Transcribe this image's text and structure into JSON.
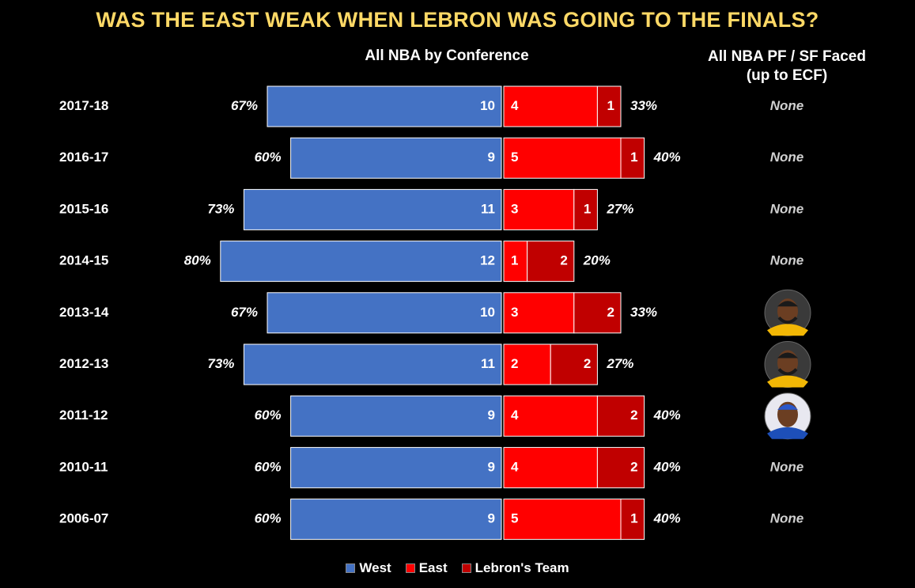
{
  "colors": {
    "west": "#4472C4",
    "east": "#FF0000",
    "lebron": "#C00000",
    "title": "#FFD966",
    "text": "#FFFFFF",
    "italic_label": "#D0D0D0",
    "background": "#000000"
  },
  "header": {
    "title": "WAS THE EAST WEAK WHEN LEBRON WAS GOING TO THE FINALS?",
    "conference_heading": "All NBA by Conference",
    "faced_heading_line1": "All NBA PF / SF Faced",
    "faced_heading_line2": "(up to ECF)"
  },
  "legend": {
    "west": "West",
    "east": "East",
    "lebron": "Lebron's Team"
  },
  "chart_data": {
    "type": "bar",
    "orientation": "horizontal-diverging",
    "title": "WAS THE EAST WEAK WHEN LEBRON WAS GOING TO THE FINALS?",
    "subtitle": "All NBA by Conference",
    "series_names": [
      "West",
      "East",
      "Lebron's Team"
    ],
    "rows": [
      {
        "season": "2017-18",
        "west": 10,
        "east": 4,
        "lebron": 1,
        "west_pct": "67%",
        "east_pct": "33%",
        "faced": "None",
        "faced_icon": ""
      },
      {
        "season": "2016-17",
        "west": 9,
        "east": 5,
        "lebron": 1,
        "west_pct": "60%",
        "east_pct": "40%",
        "faced": "None",
        "faced_icon": ""
      },
      {
        "season": "2015-16",
        "west": 11,
        "east": 3,
        "lebron": 1,
        "west_pct": "73%",
        "east_pct": "27%",
        "faced": "None",
        "faced_icon": ""
      },
      {
        "season": "2014-15",
        "west": 12,
        "east": 1,
        "lebron": 2,
        "west_pct": "80%",
        "east_pct": "20%",
        "faced": "None",
        "faced_icon": ""
      },
      {
        "season": "2013-14",
        "west": 10,
        "east": 3,
        "lebron": 2,
        "west_pct": "67%",
        "east_pct": "33%",
        "faced": "",
        "faced_icon": "player-photo-pacers"
      },
      {
        "season": "2012-13",
        "west": 11,
        "east": 2,
        "lebron": 2,
        "west_pct": "73%",
        "east_pct": "27%",
        "faced": "",
        "faced_icon": "player-photo-pacers"
      },
      {
        "season": "2011-12",
        "west": 9,
        "east": 4,
        "lebron": 2,
        "west_pct": "60%",
        "east_pct": "40%",
        "faced": "",
        "faced_icon": "player-photo-knicks"
      },
      {
        "season": "2010-11",
        "west": 9,
        "east": 4,
        "lebron": 2,
        "west_pct": "60%",
        "east_pct": "40%",
        "faced": "None",
        "faced_icon": ""
      },
      {
        "season": "2006-07",
        "west": 9,
        "east": 5,
        "lebron": 1,
        "west_pct": "60%",
        "east_pct": "40%",
        "faced": "None",
        "faced_icon": ""
      }
    ]
  }
}
